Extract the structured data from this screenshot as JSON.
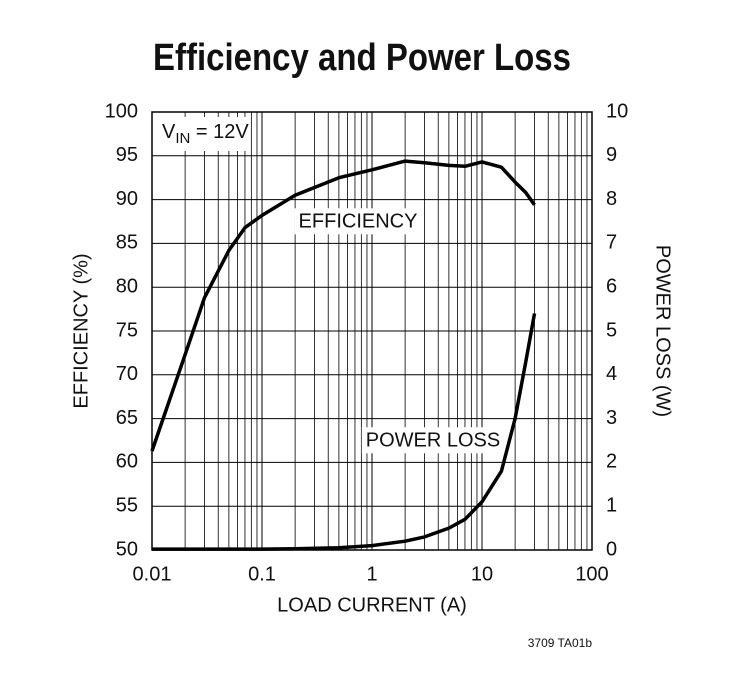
{
  "chart_data": {
    "type": "line",
    "title": "Efficiency and Power Loss",
    "x_label": "LOAD CURRENT (A)",
    "y_label": "EFFICIENCY (%)",
    "y2_label": "POWER LOSS (W)",
    "vin_label": {
      "main": "V",
      "sub": "IN",
      "tail": " = 12V"
    },
    "footnote": "3709 TA01b",
    "xscale": "log",
    "grid": true,
    "x": [
      0.01,
      0.02,
      0.03,
      0.05,
      0.07,
      0.1,
      0.2,
      0.5,
      1,
      2,
      3,
      5,
      7,
      10,
      15,
      20,
      25,
      30
    ],
    "series": [
      {
        "name": "EFFICIENCY",
        "color": "#000000",
        "axis": "y",
        "values": [
          61.3,
          72.3,
          78.8,
          84.2,
          86.8,
          88.2,
          90.5,
          92.5,
          93.4,
          94.4,
          94.2,
          93.9,
          93.8,
          94.3,
          93.7,
          92,
          90.8,
          89.4
        ]
      },
      {
        "name": "POWER LOSS",
        "color": "#000000",
        "axis": "y2",
        "values": [
          0.02,
          0.02,
          0.02,
          0.02,
          0.02,
          0.02,
          0.03,
          0.05,
          0.1,
          0.2,
          0.3,
          0.5,
          0.7,
          1.1,
          1.8,
          3,
          4.3,
          5.4
        ]
      }
    ],
    "xlim": [
      0.01,
      100
    ],
    "xticks": [
      0.01,
      0.1,
      1,
      10,
      100
    ],
    "ylim": [
      50,
      100
    ],
    "yticks": [
      50,
      55,
      60,
      65,
      70,
      75,
      80,
      85,
      90,
      95,
      100
    ],
    "y2lim": [
      0,
      10
    ],
    "y2ticks": [
      0,
      1,
      2,
      3,
      4,
      5,
      6,
      7,
      8,
      9,
      10
    ]
  }
}
